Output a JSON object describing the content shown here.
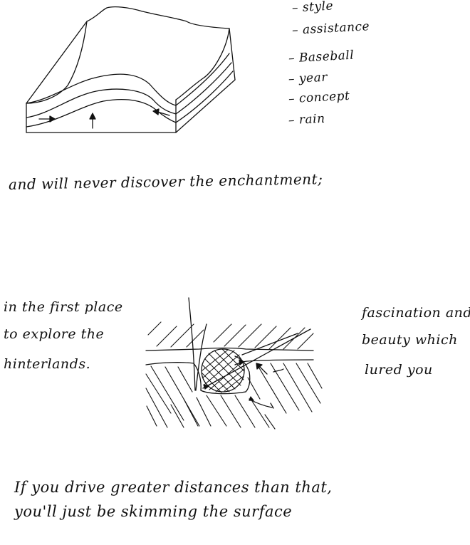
{
  "bullet_list": {
    "items": [
      "style",
      "assistance",
      "Baseball",
      "year",
      "concept",
      "rain"
    ]
  },
  "captions": {
    "middle_line": "and will never discover the enchantment;",
    "left_note": [
      "in the first place",
      "to explore the",
      "hinterlands."
    ],
    "right_note": [
      "fascination and",
      "beauty which",
      "lured you"
    ],
    "bottom_lines": [
      "If you drive greater distances than that,",
      "you'll just be skimming the surface"
    ]
  },
  "colors": {
    "ink": "#111111",
    "paper": "#ffffff"
  }
}
